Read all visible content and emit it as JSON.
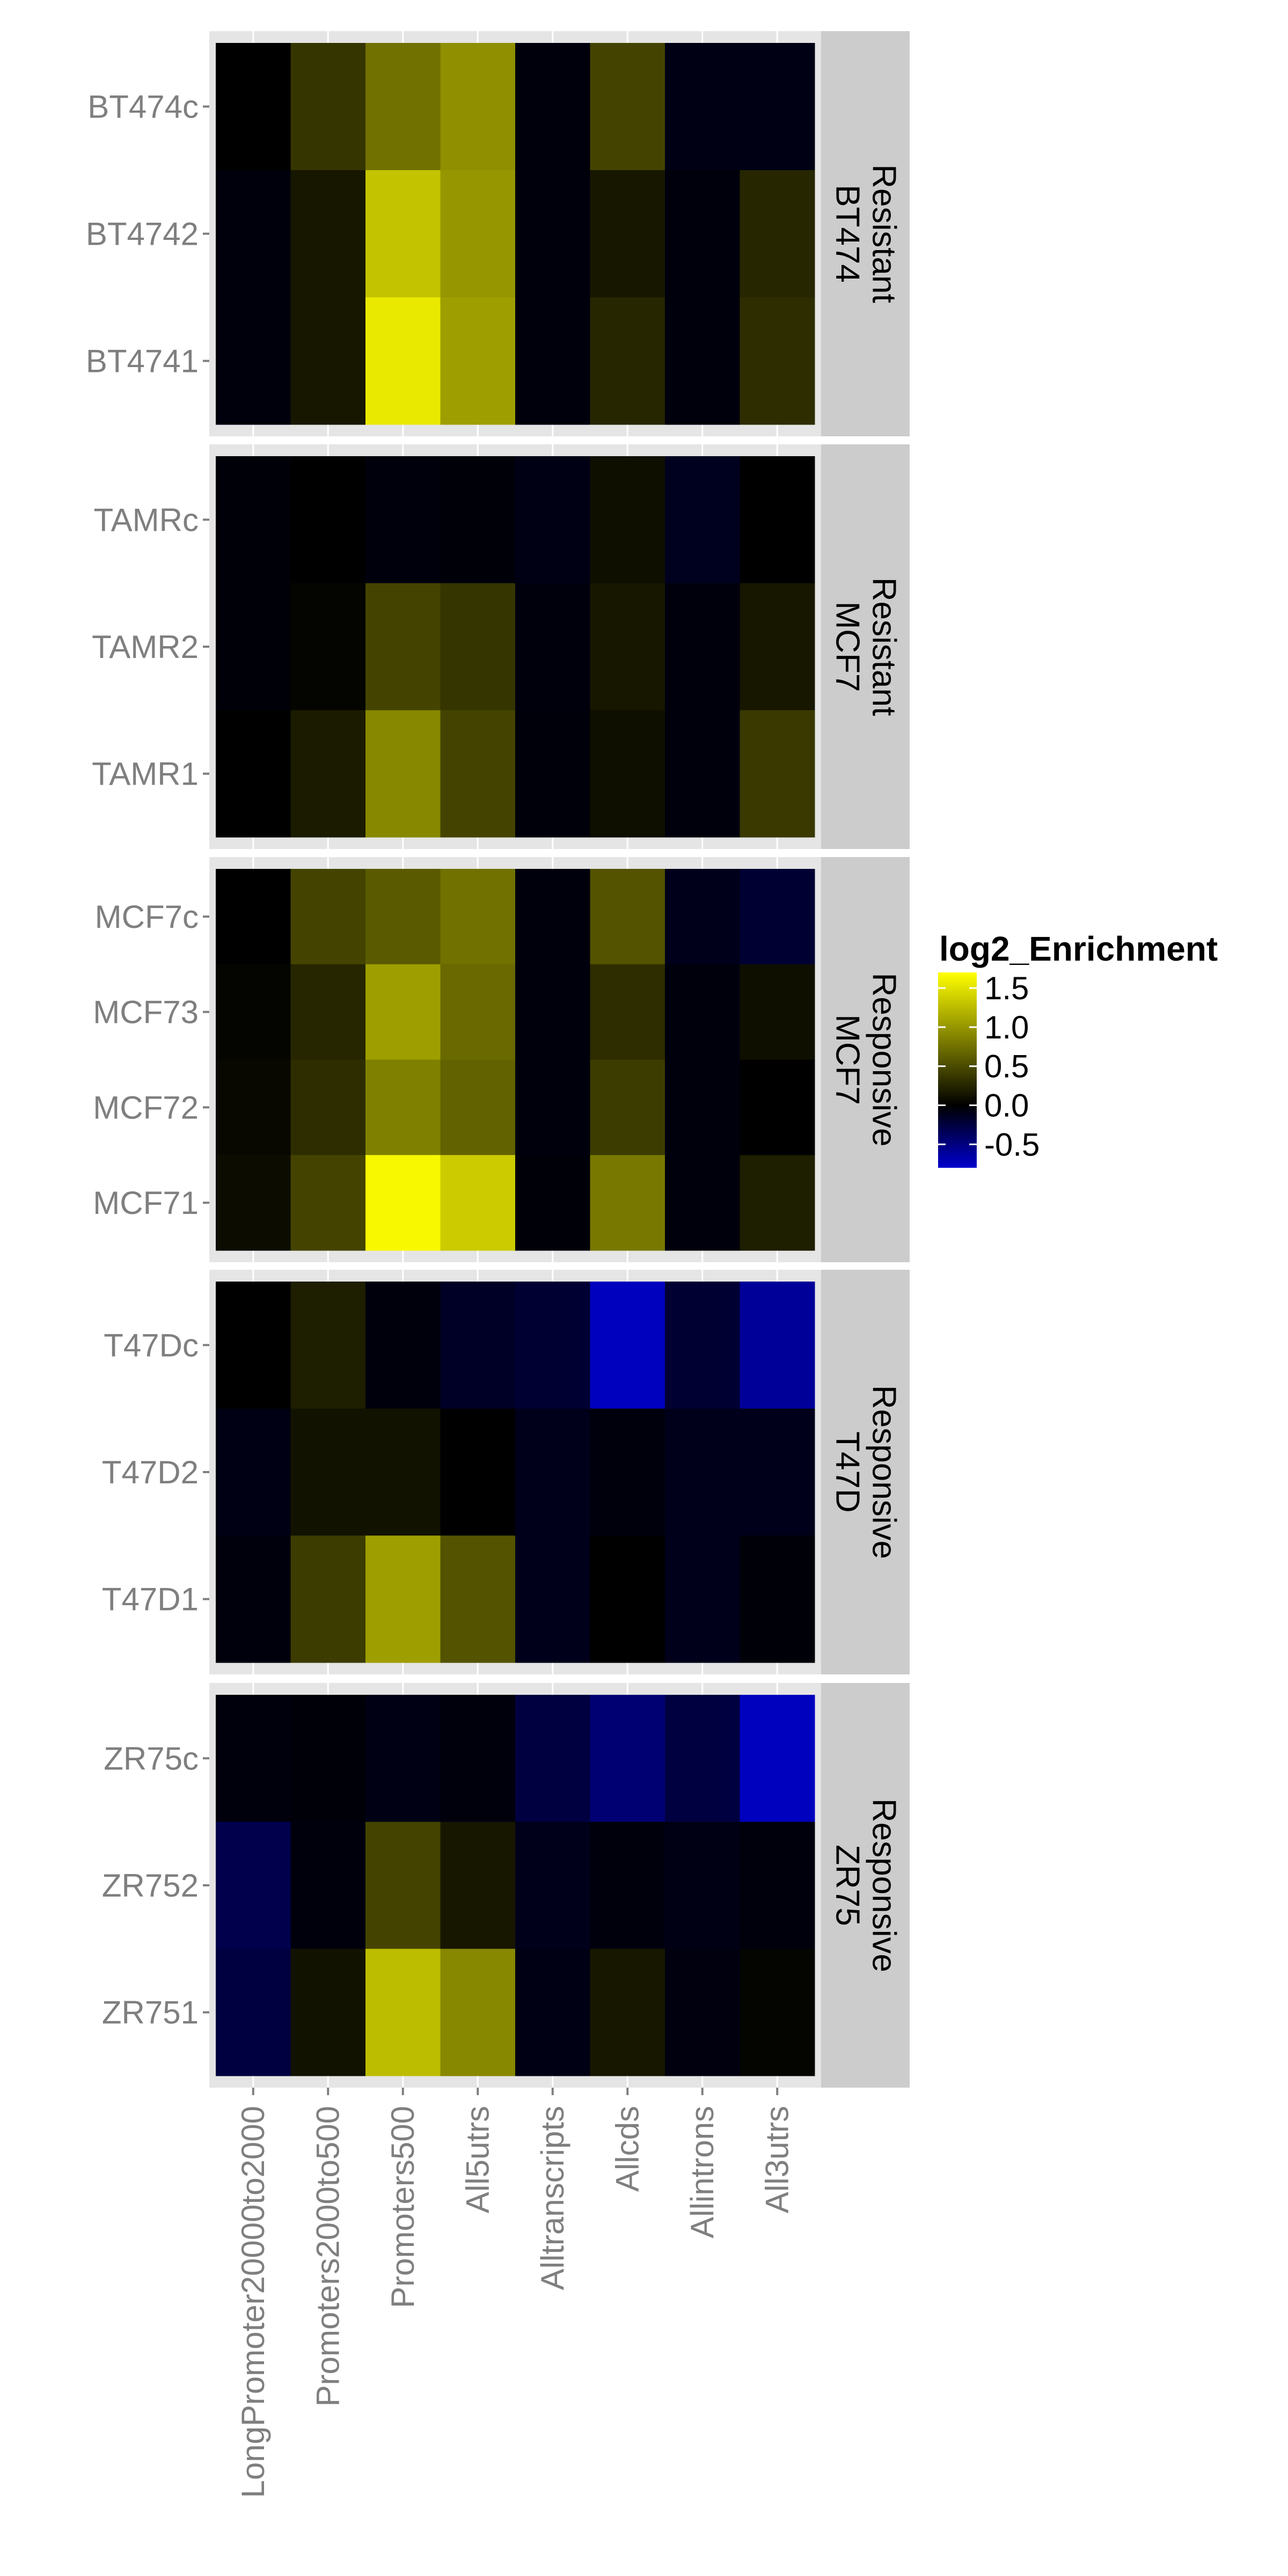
{
  "chart_data": {
    "type": "heatmap",
    "columns": [
      "LongPromoter20000to2000",
      "Promoters2000to500",
      "Promoters500",
      "All5utrs",
      "Alltranscripts",
      "Allcds",
      "Allintrons",
      "All3utrs"
    ],
    "panels": [
      {
        "strip": [
          "Resistant",
          "BT474"
        ],
        "rows": [
          {
            "label": "BT474c",
            "values": [
              0.0,
              0.35,
              0.75,
              0.95,
              -0.05,
              0.45,
              -0.08,
              -0.08
            ]
          },
          {
            "label": "BT4742",
            "values": [
              -0.05,
              0.15,
              1.3,
              1.0,
              -0.05,
              0.15,
              -0.05,
              0.25
            ]
          },
          {
            "label": "BT4741",
            "values": [
              -0.05,
              0.15,
              1.55,
              1.05,
              -0.05,
              0.25,
              -0.05,
              0.3
            ]
          }
        ]
      },
      {
        "strip": [
          "Resistant",
          "MCF7"
        ],
        "rows": [
          {
            "label": "TAMRc",
            "values": [
              -0.03,
              0.0,
              -0.05,
              -0.03,
              -0.08,
              0.1,
              -0.12,
              0.0
            ]
          },
          {
            "label": "TAMR2",
            "values": [
              -0.03,
              0.03,
              0.45,
              0.35,
              -0.05,
              0.15,
              -0.05,
              0.15
            ]
          },
          {
            "label": "TAMR1",
            "values": [
              0.0,
              0.18,
              0.9,
              0.45,
              -0.04,
              0.1,
              -0.05,
              0.38
            ]
          }
        ]
      },
      {
        "strip": [
          "Responsive",
          "MCF7"
        ],
        "rows": [
          {
            "label": "MCF7c",
            "values": [
              0.0,
              0.45,
              0.6,
              0.75,
              -0.05,
              0.55,
              -0.1,
              -0.2
            ]
          },
          {
            "label": "MCF73",
            "values": [
              0.03,
              0.25,
              1.05,
              0.7,
              -0.05,
              0.3,
              -0.05,
              0.1
            ]
          },
          {
            "label": "MCF72",
            "values": [
              0.05,
              0.3,
              0.85,
              0.65,
              -0.05,
              0.4,
              -0.05,
              0.0
            ]
          },
          {
            "label": "MCF71",
            "values": [
              0.08,
              0.45,
              1.65,
              1.35,
              -0.03,
              0.8,
              -0.05,
              0.2
            ]
          }
        ]
      },
      {
        "strip": [
          "Responsive",
          "T47D"
        ],
        "rows": [
          {
            "label": "T47Dc",
            "values": [
              0.0,
              0.2,
              -0.05,
              -0.15,
              -0.2,
              -0.75,
              -0.2,
              -0.6
            ]
          },
          {
            "label": "T47D2",
            "values": [
              -0.08,
              0.12,
              0.12,
              0.0,
              -0.1,
              -0.05,
              -0.1,
              -0.1
            ]
          },
          {
            "label": "T47D1",
            "values": [
              -0.05,
              0.4,
              1.05,
              0.55,
              -0.1,
              0.0,
              -0.1,
              -0.03
            ]
          }
        ]
      },
      {
        "strip": [
          "Responsive",
          "ZR75"
        ],
        "rows": [
          {
            "label": "ZR75c",
            "values": [
              -0.05,
              -0.03,
              -0.08,
              -0.05,
              -0.25,
              -0.45,
              -0.25,
              -0.75
            ]
          },
          {
            "label": "ZR752",
            "values": [
              -0.3,
              -0.05,
              0.45,
              0.15,
              -0.1,
              -0.05,
              -0.08,
              -0.05
            ]
          },
          {
            "label": "ZR751",
            "values": [
              -0.25,
              0.12,
              1.25,
              0.9,
              -0.08,
              0.15,
              -0.06,
              0.03
            ]
          }
        ]
      }
    ],
    "legend": {
      "title": "log2_Enrichment",
      "ticks": [
        "1.5",
        "1.0",
        "0.5",
        "0.0",
        "-0.5"
      ],
      "tick_values": [
        1.5,
        1.0,
        0.5,
        0.0,
        -0.5
      ],
      "range": [
        -0.8,
        1.7
      ],
      "placement": "right"
    },
    "colors": {
      "low": "#0000cc",
      "mid": "#000000",
      "high": "#ffff00",
      "panel_background": "#e5e5e5",
      "strip_background": "#cccccc"
    },
    "grid": true
  }
}
